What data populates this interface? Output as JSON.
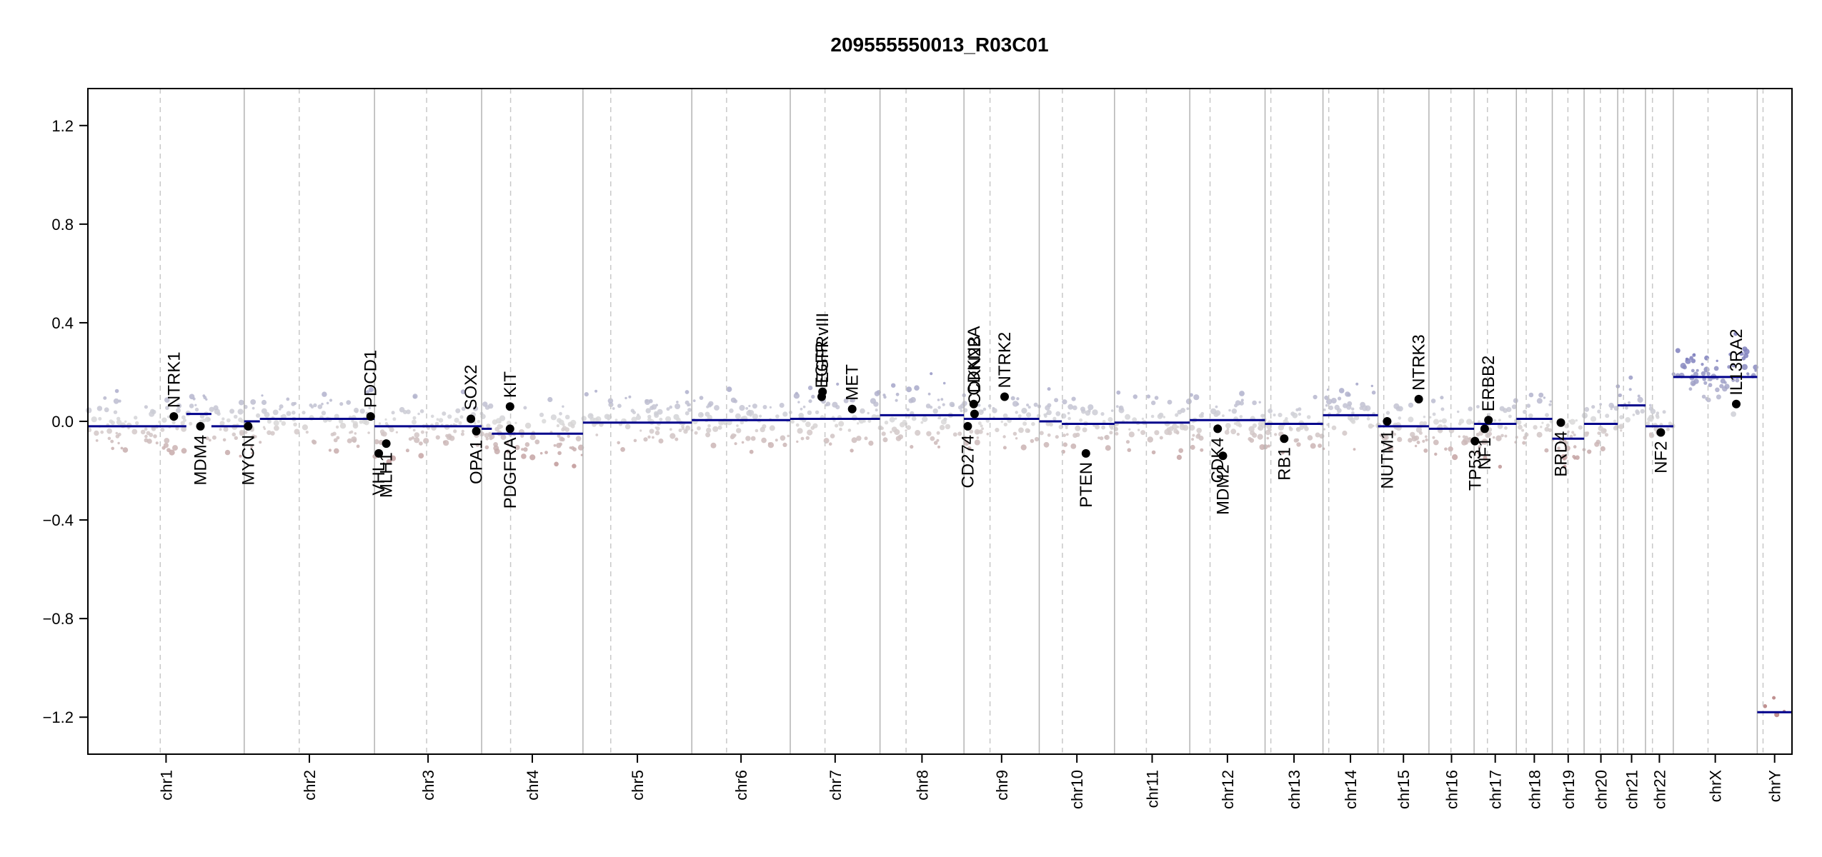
{
  "chart_data": {
    "type": "scatter",
    "title": "209555550013_R03C01",
    "xlabel": "",
    "ylabel": "",
    "ylim": [
      -1.35,
      1.35
    ],
    "yticks": [
      -1.2,
      -0.8,
      -0.4,
      0.0,
      0.4,
      0.8,
      1.2
    ],
    "ytick_labels": [
      "−1.2",
      "−0.8",
      "−0.4",
      "0.0",
      "0.4",
      "0.8",
      "1.2"
    ],
    "x_unit": "chromosome arm (p, q)",
    "chromosomes": [
      {
        "name": "chr1",
        "p": 1.25,
        "q": 1.45
      },
      {
        "name": "chr2",
        "p": 0.95,
        "q": 1.3
      },
      {
        "name": "chr3",
        "p": 0.9,
        "q": 0.95
      },
      {
        "name": "chr4",
        "p": 0.5,
        "q": 1.25
      },
      {
        "name": "chr5",
        "p": 0.48,
        "q": 1.4
      },
      {
        "name": "chr6",
        "p": 0.6,
        "q": 1.1
      },
      {
        "name": "chr7",
        "p": 0.6,
        "q": 0.95
      },
      {
        "name": "chr8",
        "p": 0.45,
        "q": 1.0
      },
      {
        "name": "chr9",
        "p": 0.45,
        "q": 0.85
      },
      {
        "name": "chr10",
        "p": 0.4,
        "q": 0.9
      },
      {
        "name": "chr11",
        "p": 0.55,
        "q": 0.75
      },
      {
        "name": "chr12",
        "p": 0.35,
        "q": 0.95
      },
      {
        "name": "chr13",
        "p": 0.1,
        "q": 0.9
      },
      {
        "name": "chr14",
        "p": 0.1,
        "q": 0.85
      },
      {
        "name": "chr15",
        "p": 0.1,
        "q": 0.78
      },
      {
        "name": "chr16",
        "p": 0.38,
        "q": 0.4
      },
      {
        "name": "chr17",
        "p": 0.23,
        "q": 0.5
      },
      {
        "name": "chr18",
        "p": 0.17,
        "q": 0.45
      },
      {
        "name": "chr19",
        "p": 0.27,
        "q": 0.28
      },
      {
        "name": "chr20",
        "p": 0.28,
        "q": 0.3
      },
      {
        "name": "chr21",
        "p": 0.1,
        "q": 0.38
      },
      {
        "name": "chr22",
        "p": 0.12,
        "q": 0.36
      },
      {
        "name": "chrX",
        "p": 0.6,
        "q": 0.85
      },
      {
        "name": "chrY",
        "p": 0.1,
        "q": 0.5
      }
    ],
    "segments": [
      {
        "chr": "chr1",
        "from": 0.0,
        "to": 0.63,
        "value": -0.02
      },
      {
        "chr": "chr1",
        "from": 0.63,
        "to": 0.79,
        "value": 0.03
      },
      {
        "chr": "chr1",
        "from": 0.79,
        "to": 1.0,
        "value": -0.02
      },
      {
        "chr": "chr2",
        "from": 0.0,
        "to": 0.12,
        "value": 0.0
      },
      {
        "chr": "chr2",
        "from": 0.12,
        "to": 1.0,
        "value": 0.01
      },
      {
        "chr": "chr3",
        "from": 0.0,
        "to": 1.0,
        "value": -0.02
      },
      {
        "chr": "chr4",
        "from": 0.0,
        "to": 0.1,
        "value": -0.03
      },
      {
        "chr": "chr4",
        "from": 0.1,
        "to": 1.0,
        "value": -0.05
      },
      {
        "chr": "chr5",
        "from": 0.0,
        "to": 1.0,
        "value": -0.005
      },
      {
        "chr": "chr6",
        "from": 0.0,
        "to": 1.0,
        "value": 0.005
      },
      {
        "chr": "chr7",
        "from": 0.0,
        "to": 1.0,
        "value": 0.01
      },
      {
        "chr": "chr8",
        "from": 0.0,
        "to": 1.0,
        "value": 0.025
      },
      {
        "chr": "chr9",
        "from": 0.0,
        "to": 1.0,
        "value": 0.01
      },
      {
        "chr": "chr10",
        "from": 0.0,
        "to": 0.3,
        "value": 0.0
      },
      {
        "chr": "chr10",
        "from": 0.3,
        "to": 1.0,
        "value": -0.01
      },
      {
        "chr": "chr11",
        "from": 0.0,
        "to": 1.0,
        "value": -0.005
      },
      {
        "chr": "chr12",
        "from": 0.0,
        "to": 1.0,
        "value": 0.005
      },
      {
        "chr": "chr13",
        "from": 0.0,
        "to": 1.0,
        "value": -0.01
      },
      {
        "chr": "chr14",
        "from": 0.0,
        "to": 1.0,
        "value": 0.025
      },
      {
        "chr": "chr15",
        "from": 0.0,
        "to": 1.0,
        "value": -0.02
      },
      {
        "chr": "chr16",
        "from": 0.0,
        "to": 1.0,
        "value": -0.03
      },
      {
        "chr": "chr17",
        "from": 0.0,
        "to": 1.0,
        "value": -0.01
      },
      {
        "chr": "chr18",
        "from": 0.0,
        "to": 1.0,
        "value": 0.01
      },
      {
        "chr": "chr19",
        "from": 0.0,
        "to": 1.0,
        "value": -0.07
      },
      {
        "chr": "chr20",
        "from": 0.0,
        "to": 1.0,
        "value": -0.01
      },
      {
        "chr": "chr21",
        "from": 0.0,
        "to": 1.0,
        "value": 0.065
      },
      {
        "chr": "chr22",
        "from": 0.0,
        "to": 1.0,
        "value": -0.02
      },
      {
        "chr": "chrX",
        "from": 0.0,
        "to": 1.0,
        "value": 0.18
      },
      {
        "chr": "chrY",
        "from": 0.0,
        "to": 1.0,
        "value": -1.18
      }
    ],
    "genes": [
      {
        "name": "NTRK1",
        "chr": "chr1",
        "pos": 0.55,
        "value": 0.02,
        "label": "above"
      },
      {
        "name": "MDM4",
        "chr": "chr1",
        "pos": 0.72,
        "value": -0.02,
        "label": "below"
      },
      {
        "name": "MYCN",
        "chr": "chr2",
        "pos": 0.03,
        "value": -0.02,
        "label": "below"
      },
      {
        "name": "PDCD1",
        "chr": "chr2",
        "pos": 0.97,
        "value": 0.02,
        "label": "above"
      },
      {
        "name": "VHL",
        "chr": "chr3",
        "pos": 0.04,
        "value": -0.13,
        "label": "below"
      },
      {
        "name": "MLH1",
        "chr": "chr3",
        "pos": 0.11,
        "value": -0.09,
        "label": "below"
      },
      {
        "name": "SOX2",
        "chr": "chr3",
        "pos": 0.9,
        "value": 0.01,
        "label": "above"
      },
      {
        "name": "OPA1",
        "chr": "chr3",
        "pos": 0.95,
        "value": -0.04,
        "label": "below"
      },
      {
        "name": "KIT",
        "chr": "chr4",
        "pos": 0.28,
        "value": 0.06,
        "label": "above"
      },
      {
        "name": "PDGFRA",
        "chr": "chr4",
        "pos": 0.28,
        "value": -0.03,
        "label": "below"
      },
      {
        "name": "EGFR",
        "chr": "chr7",
        "pos": 0.35,
        "value": 0.1,
        "label": "above"
      },
      {
        "name": "EGFRvIII",
        "chr": "chr7",
        "pos": 0.36,
        "value": 0.12,
        "label": "above"
      },
      {
        "name": "MET",
        "chr": "chr7",
        "pos": 0.69,
        "value": 0.05,
        "label": "above"
      },
      {
        "name": "CD274",
        "chr": "chr9",
        "pos": 0.05,
        "value": -0.02,
        "label": "below"
      },
      {
        "name": "CDKN2A",
        "chr": "chr9",
        "pos": 0.13,
        "value": 0.07,
        "label": "above"
      },
      {
        "name": "CDKN2B",
        "chr": "chr9",
        "pos": 0.14,
        "value": 0.03,
        "label": "above"
      },
      {
        "name": "NTRK2",
        "chr": "chr9",
        "pos": 0.54,
        "value": 0.1,
        "label": "above"
      },
      {
        "name": "PTEN",
        "chr": "chr10",
        "pos": 0.62,
        "value": -0.13,
        "label": "below"
      },
      {
        "name": "CDK4",
        "chr": "chr12",
        "pos": 0.37,
        "value": -0.03,
        "label": "below"
      },
      {
        "name": "MDM2",
        "chr": "chr12",
        "pos": 0.44,
        "value": -0.14,
        "label": "below"
      },
      {
        "name": "RB1",
        "chr": "chr13",
        "pos": 0.33,
        "value": -0.07,
        "label": "below"
      },
      {
        "name": "NUTM1",
        "chr": "chr15",
        "pos": 0.18,
        "value": 0.0,
        "label": "below"
      },
      {
        "name": "NTRK3",
        "chr": "chr15",
        "pos": 0.8,
        "value": 0.09,
        "label": "above"
      },
      {
        "name": "TP53",
        "chr": "chr17",
        "pos": 0.02,
        "value": -0.08,
        "label": "below"
      },
      {
        "name": "NF1",
        "chr": "chr17",
        "pos": 0.25,
        "value": -0.03,
        "label": "below"
      },
      {
        "name": "ERBB2",
        "chr": "chr17",
        "pos": 0.34,
        "value": 0.005,
        "label": "above"
      },
      {
        "name": "BRD4",
        "chr": "chr19",
        "pos": 0.27,
        "value": -0.005,
        "label": "below"
      },
      {
        "name": "NF2",
        "chr": "chr22",
        "pos": 0.55,
        "value": -0.045,
        "label": "below"
      },
      {
        "name": "IL13RA2",
        "chr": "chrX",
        "pos": 0.75,
        "value": 0.07,
        "label": "above"
      }
    ],
    "grid": {
      "chromosome_boundaries": "solid",
      "centromeres": "dashed"
    },
    "colors": {
      "gain": "#7f80bd",
      "neutral": "#d9d9d9",
      "loss": "#b57c7c",
      "segment": "#00008b",
      "gene_point": "#000000"
    }
  }
}
